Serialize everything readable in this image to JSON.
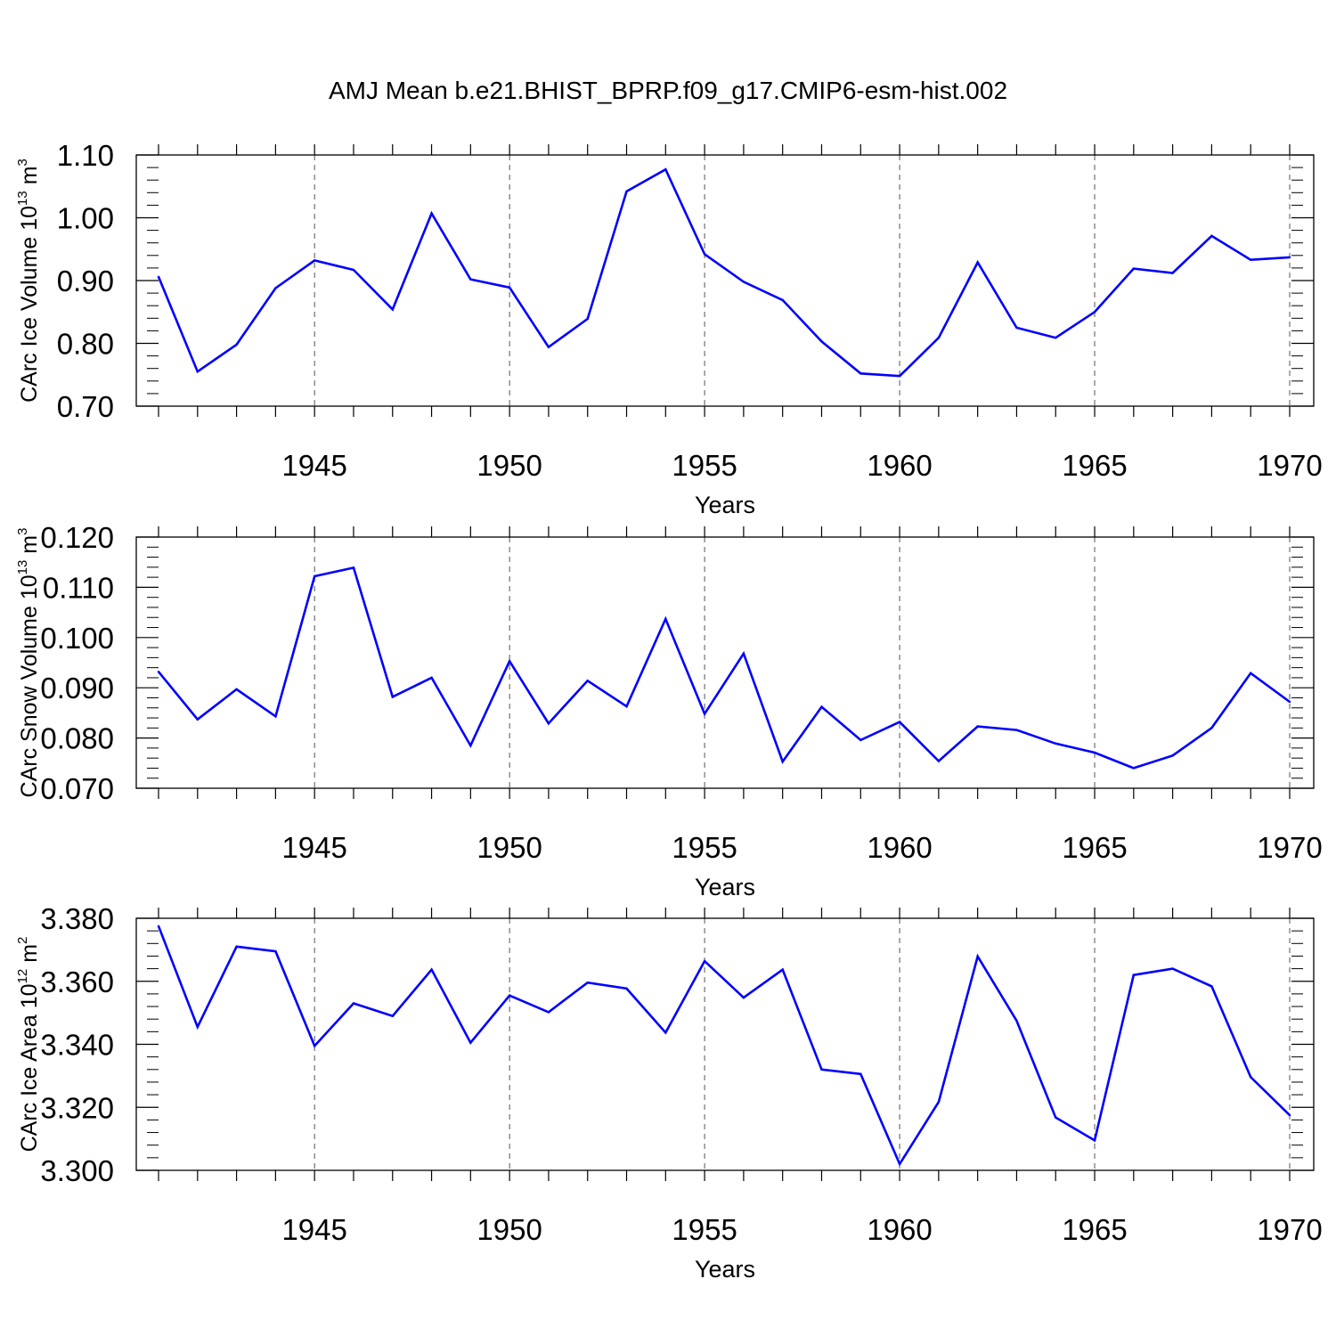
{
  "title": "AMJ Mean b.e21.BHIST_BPRP.f09_g17.CMIP6-esm-hist.002",
  "chart_data": [
    {
      "type": "line",
      "ylabel": "CArc Ice Volume 10",
      "ylabel_exp": "13",
      "ylabel_unit": " m",
      "ylabel_unit_exp": "3",
      "xlabel": "Years",
      "xlim": [
        1941,
        1970
      ],
      "ylim": [
        0.7,
        1.1
      ],
      "ytick_values": [
        0.7,
        0.8,
        0.9,
        1.0,
        1.1
      ],
      "ytick_labels": [
        "0.70",
        "0.80",
        "0.90",
        "1.00",
        "1.10"
      ],
      "xtick_values": [
        1945,
        1950,
        1955,
        1960,
        1965,
        1970
      ],
      "xtick_labels": [
        "1945",
        "1950",
        "1955",
        "1960",
        "1965",
        "1970"
      ],
      "line_color": "#0000ff",
      "x": [
        1941,
        1942,
        1943,
        1944,
        1945,
        1946,
        1947,
        1948,
        1949,
        1950,
        1951,
        1952,
        1953,
        1954,
        1955,
        1956,
        1957,
        1958,
        1959,
        1960,
        1961,
        1962,
        1963,
        1964,
        1965,
        1966,
        1967,
        1968,
        1969,
        1970
      ],
      "values": [
        0.906,
        0.755,
        0.798,
        0.888,
        0.932,
        0.917,
        0.854,
        1.007,
        0.902,
        0.889,
        0.794,
        0.839,
        1.042,
        1.077,
        0.942,
        0.898,
        0.869,
        0.803,
        0.752,
        0.748,
        0.809,
        0.929,
        0.825,
        0.809,
        0.85,
        0.919,
        0.912,
        0.971,
        0.933,
        0.937
      ]
    },
    {
      "type": "line",
      "ylabel": "CArc Snow Volume 10",
      "ylabel_exp": "13",
      "ylabel_unit": " m",
      "ylabel_unit_exp": "3",
      "xlabel": "Years",
      "xlim": [
        1941,
        1970
      ],
      "ylim": [
        0.07,
        0.12
      ],
      "ytick_values": [
        0.07,
        0.08,
        0.09,
        0.1,
        0.11,
        0.12
      ],
      "ytick_labels": [
        "0.070",
        "0.080",
        "0.090",
        "0.100",
        "0.110",
        "0.120"
      ],
      "xtick_values": [
        1945,
        1950,
        1955,
        1960,
        1965,
        1970
      ],
      "xtick_labels": [
        "1945",
        "1950",
        "1955",
        "1960",
        "1965",
        "1970"
      ],
      "line_color": "#0000ff",
      "x": [
        1941,
        1942,
        1943,
        1944,
        1945,
        1946,
        1947,
        1948,
        1949,
        1950,
        1951,
        1952,
        1953,
        1954,
        1955,
        1956,
        1957,
        1958,
        1959,
        1960,
        1961,
        1962,
        1963,
        1964,
        1965,
        1966,
        1967,
        1968,
        1969,
        1970
      ],
      "values": [
        0.0932,
        0.0837,
        0.0897,
        0.0843,
        0.1122,
        0.1139,
        0.0882,
        0.092,
        0.0785,
        0.0953,
        0.0829,
        0.0914,
        0.0863,
        0.1037,
        0.0848,
        0.0968,
        0.0753,
        0.0862,
        0.0796,
        0.0832,
        0.0754,
        0.0823,
        0.0816,
        0.0789,
        0.0771,
        0.074,
        0.0765,
        0.082,
        0.0929,
        0.0872
      ]
    },
    {
      "type": "line",
      "ylabel": "CArc Ice Area 10",
      "ylabel_exp": "12",
      "ylabel_unit": " m",
      "ylabel_unit_exp": "2",
      "xlabel": "Years",
      "xlim": [
        1941,
        1970
      ],
      "ylim": [
        3.3,
        3.38
      ],
      "ytick_values": [
        3.3,
        3.32,
        3.34,
        3.36,
        3.38
      ],
      "ytick_labels": [
        "3.300",
        "3.320",
        "3.340",
        "3.360",
        "3.380"
      ],
      "xtick_values": [
        1945,
        1950,
        1955,
        1960,
        1965,
        1970
      ],
      "xtick_labels": [
        "1945",
        "1950",
        "1955",
        "1960",
        "1965",
        "1970"
      ],
      "line_color": "#0000ff",
      "x": [
        1941,
        1942,
        1943,
        1944,
        1945,
        1946,
        1947,
        1948,
        1949,
        1950,
        1951,
        1952,
        1953,
        1954,
        1955,
        1956,
        1957,
        1958,
        1959,
        1960,
        1961,
        1962,
        1963,
        1964,
        1965,
        1966,
        1967,
        1968,
        1969,
        1970
      ],
      "values": [
        3.3775,
        3.3455,
        3.371,
        3.3695,
        3.3395,
        3.353,
        3.349,
        3.3637,
        3.3405,
        3.3555,
        3.3502,
        3.3596,
        3.3577,
        3.3437,
        3.3664,
        3.3548,
        3.3637,
        3.332,
        3.3306,
        3.302,
        3.3217,
        3.3679,
        3.3475,
        3.3168,
        3.3095,
        3.362,
        3.364,
        3.3584,
        3.3296,
        3.3175
      ]
    }
  ]
}
